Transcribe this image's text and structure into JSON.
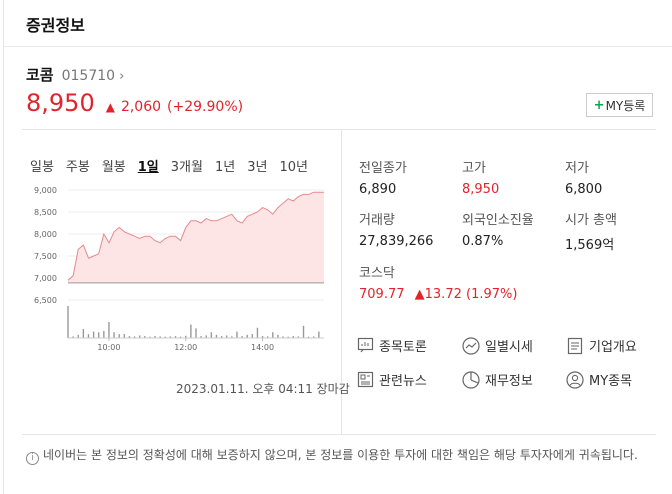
{
  "header": {
    "title": "증권정보"
  },
  "stock": {
    "name": "코콤",
    "code": "015710",
    "chevron": "›",
    "price": "8,950",
    "direction": "▲",
    "change": "2,060",
    "change_pct": "(+29.90%)",
    "color_up": "#e0242b"
  },
  "my_button": {
    "plus": "+",
    "label": "MY등록"
  },
  "period_tabs": [
    "일봉",
    "주봉",
    "월봉",
    "1일",
    "3개월",
    "1년",
    "3년",
    "10년"
  ],
  "active_tab": "1일",
  "chart_data": {
    "type": "area",
    "y_ticks": [
      "9,000",
      "8,500",
      "8,000",
      "7,500",
      "7,000",
      "6,500"
    ],
    "x_ticks": [
      "10:00",
      "12:00",
      "14:00"
    ],
    "ylim": [
      6500,
      9000
    ],
    "baseline": 6890,
    "line_color": "#e58a8d",
    "fill_color": "#fde5e5",
    "x": [
      0,
      0.02,
      0.04,
      0.06,
      0.08,
      0.1,
      0.12,
      0.14,
      0.16,
      0.18,
      0.2,
      0.22,
      0.24,
      0.26,
      0.28,
      0.3,
      0.32,
      0.34,
      0.36,
      0.38,
      0.4,
      0.42,
      0.44,
      0.46,
      0.48,
      0.5,
      0.52,
      0.54,
      0.56,
      0.58,
      0.6,
      0.62,
      0.64,
      0.66,
      0.68,
      0.7,
      0.72,
      0.74,
      0.76,
      0.78,
      0.8,
      0.82,
      0.84,
      0.86,
      0.88,
      0.9,
      0.92,
      0.94,
      0.96,
      0.98,
      1.0
    ],
    "values": [
      6950,
      7050,
      7650,
      7750,
      7450,
      7500,
      7550,
      8000,
      7800,
      8050,
      8150,
      8050,
      8000,
      7950,
      7900,
      7950,
      7950,
      7850,
      7800,
      7900,
      7950,
      7950,
      7850,
      8150,
      8300,
      8300,
      8250,
      8350,
      8300,
      8300,
      8350,
      8400,
      8450,
      8300,
      8250,
      8400,
      8450,
      8500,
      8600,
      8550,
      8450,
      8600,
      8700,
      8800,
      8750,
      8850,
      8900,
      8900,
      8950,
      8950,
      8950
    ],
    "volume": [
      1.0,
      0.05,
      0.1,
      0.28,
      0.12,
      0.2,
      0.18,
      0.22,
      0.5,
      0.18,
      0.12,
      0.12,
      0.06,
      0.05,
      0.08,
      0.06,
      0.04,
      0.06,
      0.05,
      0.04,
      0.05,
      0.06,
      0.04,
      0.07,
      0.42,
      0.3,
      0.06,
      0.08,
      0.18,
      0.1,
      0.06,
      0.08,
      0.05,
      0.2,
      0.06,
      0.1,
      0.12,
      0.32,
      0.06,
      0.05,
      0.18,
      0.1,
      0.05,
      0.04,
      0.06,
      0.05,
      0.38,
      0.04,
      0.05,
      0.2,
      0.0
    ]
  },
  "timestamp": "2023.01.11. 오후 04:11 장마감",
  "quote": {
    "prev_close_label": "전일종가",
    "prev_close": "6,890",
    "high_label": "고가",
    "high": "8,950",
    "low_label": "저가",
    "low": "6,800",
    "volume_label": "거래량",
    "volume": "27,839,266",
    "foreign_label": "외국인소진율",
    "foreign": "0.87%",
    "mcap_label": "시가 총액",
    "mcap": "1,569억",
    "index_label": "코스닥",
    "index_value": "709.77",
    "index_change": "▲13.72",
    "index_pct": "(1.97%)"
  },
  "links": {
    "discussion": "종목토론",
    "daily": "일별시세",
    "company": "기업개요",
    "news": "관련뉴스",
    "financial": "재무정보",
    "mystock": "MY종목"
  },
  "notice": {
    "icon": "i",
    "text": "네이버는 본 정보의 정확성에 대해 보증하지 않으며, 본 정보를 이용한 투자에 대한 책임은 해당 투자자에게 귀속됩니다."
  }
}
